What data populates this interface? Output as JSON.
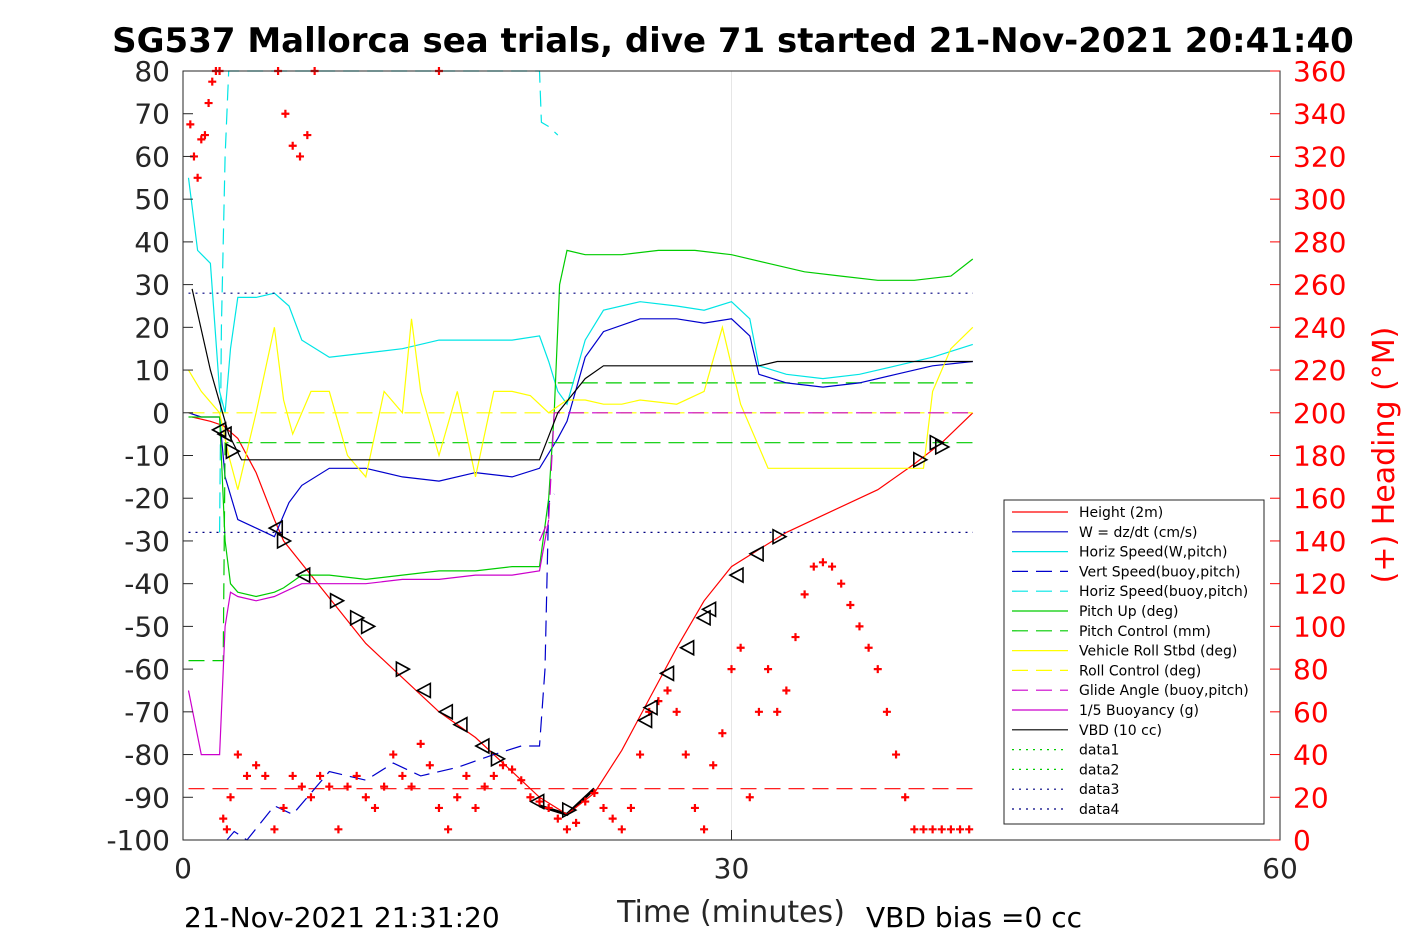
{
  "chart_data": {
    "type": "line",
    "title": "SG537 Mallorca sea trials, dive 71 started 21-Nov-2021 20:41:40",
    "xlabel": "Time (minutes)",
    "ylabel": "",
    "y2label": "(+) Heading (°M)",
    "xlim": [
      0,
      60
    ],
    "ylim": [
      -100,
      80
    ],
    "y2lim": [
      0,
      360
    ],
    "xticks": [
      "0",
      "30",
      "60"
    ],
    "yticks": [
      "80",
      "70",
      "60",
      "50",
      "40",
      "30",
      "20",
      "10",
      "0",
      "-10",
      "-20",
      "-30",
      "-40",
      "-50",
      "-60",
      "-70",
      "-80",
      "-90",
      "-100"
    ],
    "y2ticks": [
      "360",
      "340",
      "320",
      "300",
      "280",
      "260",
      "240",
      "220",
      "200",
      "180",
      "160",
      "140",
      "120",
      "100",
      "80",
      "60",
      "40",
      "20",
      "0"
    ],
    "grid": "x-major",
    "legend_position": "lower-right",
    "footer_left": "21-Nov-2021 21:31:20",
    "footer_right": "VBD bias =0 cc",
    "series": [
      {
        "name": "Height (2m)",
        "color": "#ff0000",
        "style": "solid",
        "x": [
          0.5,
          1.5,
          2.2,
          3.0,
          4.0,
          5.0,
          5.5,
          7.0,
          8.5,
          10.0,
          12.0,
          14.0,
          16.0,
          18.0,
          19.5,
          21.0,
          22.5,
          24.0,
          25.5,
          27.0,
          28.5,
          30.0,
          31.5,
          33.0,
          35.0,
          38.0,
          40.0,
          41.5,
          43.2
        ],
        "y": [
          -1,
          -2,
          -3,
          -6,
          -14,
          -25,
          -30,
          -38,
          -46,
          -54,
          -62,
          -70,
          -76,
          -84,
          -90,
          -94,
          -89,
          -79,
          -67,
          -55,
          -44,
          -36,
          -32,
          -28,
          -24,
          -18,
          -12,
          -7,
          0
        ]
      },
      {
        "name": "W = dz/dt (cm/s)",
        "color": "#0000cc",
        "style": "solid",
        "x": [
          0.3,
          1.0,
          2.0,
          2.3,
          3.0,
          4.0,
          5.0,
          5.8,
          6.5,
          8.0,
          10.0,
          12.0,
          14.0,
          16.0,
          18.0,
          19.5,
          20.5,
          21.0,
          22.0,
          23.0,
          25.0,
          27.0,
          28.5,
          30.0,
          31.0,
          31.5,
          33.0,
          35.0,
          37.0,
          39.0,
          41.0,
          43.2
        ],
        "y": [
          0,
          -1,
          -1,
          -15,
          -25,
          -27,
          -29,
          -21,
          -17,
          -13,
          -13,
          -15,
          -16,
          -14,
          -15,
          -13,
          -6,
          -2,
          13,
          19,
          22,
          22,
          21,
          22,
          18,
          9,
          7,
          6,
          7,
          9,
          11,
          12
        ]
      },
      {
        "name": "Horiz Speed(W,pitch)",
        "color": "#00e5e5",
        "style": "solid",
        "x": [
          0.3,
          0.8,
          1.5,
          2.0,
          2.3,
          2.6,
          3.0,
          4.0,
          5.0,
          5.8,
          6.5,
          8.0,
          10.0,
          12.0,
          14.0,
          16.0,
          18.0,
          19.5,
          20.0,
          20.5,
          21.0,
          22.0,
          23.0,
          25.0,
          27.0,
          28.5,
          30.0,
          31.0,
          31.5,
          33.0,
          35.0,
          37.0,
          39.0,
          41.0,
          43.2
        ],
        "y": [
          55,
          38,
          35,
          5,
          0,
          15,
          27,
          27,
          28,
          25,
          17,
          13,
          14,
          15,
          17,
          17,
          17,
          18,
          12,
          5,
          2,
          17,
          24,
          26,
          25,
          24,
          26,
          22,
          11,
          9,
          8,
          9,
          11,
          13,
          16
        ]
      },
      {
        "name": "Vert Speed(buoy,pitch)",
        "color": "#0000cc",
        "style": "dashed",
        "x": [
          2.4,
          2.8,
          3.5,
          5.0,
          6.0,
          8.0,
          10.0,
          11.5,
          13.0,
          15.0,
          17.0,
          18.5,
          19.5,
          19.8,
          20.0,
          20.3
        ],
        "y": [
          -100,
          -98,
          -100,
          -92,
          -94,
          -84,
          -86,
          -82,
          -85,
          -83,
          -80,
          -78,
          -78,
          -60,
          -21,
          -19
        ]
      },
      {
        "name": "Horiz Speed(buoy,pitch)",
        "color": "#00e5e5",
        "style": "dashed",
        "x": [
          2.0,
          2.1,
          2.3,
          2.5,
          2.8,
          3.5,
          5.0,
          7.0,
          9.0,
          11.0,
          13.0,
          15.0,
          17.0,
          18.5,
          19.5,
          19.6,
          20.0,
          20.5
        ],
        "y": [
          -28,
          20,
          60,
          80,
          80,
          80,
          80,
          80,
          80,
          80,
          80,
          80,
          80,
          80,
          80,
          68,
          67,
          65
        ]
      },
      {
        "name": "Pitch Up (deg)",
        "color": "#00cc00",
        "style": "solid",
        "x": [
          0.3,
          1.0,
          2.0,
          2.3,
          2.6,
          3.0,
          4.0,
          5.0,
          5.5,
          6.5,
          8.0,
          10.0,
          12.0,
          14.0,
          16.0,
          18.0,
          19.5,
          20.0,
          20.3,
          20.6,
          21.0,
          22.0,
          24.0,
          26.0,
          28.0,
          30.0,
          32.0,
          34.0,
          36.0,
          38.0,
          40.0,
          42.0,
          43.2
        ],
        "y": [
          -1,
          -1,
          -1,
          -30,
          -40,
          -42,
          -43,
          -42,
          -41,
          -38,
          -38,
          -39,
          -38,
          -37,
          -37,
          -36,
          -36,
          -20,
          0,
          30,
          38,
          37,
          37,
          38,
          38,
          37,
          35,
          33,
          32,
          31,
          31,
          32,
          36
        ]
      },
      {
        "name": "Pitch Control (mm)",
        "color": "#00cc00",
        "style": "dashed",
        "x": [
          0.3,
          2.2,
          2.3,
          2.5,
          43.2
        ],
        "y": [
          -58,
          -58,
          -7,
          -7,
          -7
        ]
      },
      {
        "name": "Vehicle Roll Stbd (deg)",
        "color": "#ffff00",
        "style": "solid",
        "x": [
          0.3,
          1.0,
          2.0,
          2.5,
          3.0,
          4.0,
          5.0,
          5.5,
          6.0,
          7.0,
          8.0,
          9.0,
          10.0,
          11.0,
          12.0,
          12.5,
          13.0,
          14.0,
          15.0,
          16.0,
          17.0,
          18.0,
          19.0,
          20.0,
          21.0,
          22.0,
          23.0,
          24.0,
          25.0,
          27.0,
          28.5,
          29.5,
          30.5,
          32.0,
          33.0,
          35.0,
          37.0,
          39.0,
          40.5,
          41.0,
          42.0,
          43.2
        ],
        "y": [
          10,
          5,
          0,
          -10,
          -18,
          0,
          20,
          3,
          -5,
          5,
          5,
          -10,
          -15,
          5,
          0,
          22,
          5,
          -10,
          5,
          -15,
          5,
          5,
          4,
          0,
          3,
          3,
          2,
          2,
          3,
          2,
          5,
          20,
          2,
          -13,
          -13,
          -13,
          -13,
          -13,
          -13,
          5,
          15,
          20
        ]
      },
      {
        "name": "Roll Control (deg)",
        "color": "#ffff00",
        "style": "dashed",
        "x": [
          0.3,
          43.2
        ],
        "y": [
          0,
          0
        ]
      },
      {
        "name": "Glide Angle (buoy,pitch)",
        "color": "#cc00cc",
        "style": "dashed",
        "x": [
          19.5,
          20.0,
          20.3,
          43.2
        ],
        "y": [
          -30,
          -25,
          0,
          0
        ]
      },
      {
        "name": "1/5 Buoyancy (g)",
        "color": "#cc00cc",
        "style": "solid",
        "x": [
          0.3,
          1.0,
          2.0,
          2.3,
          2.6,
          3.0,
          4.0,
          5.0,
          5.5,
          6.5,
          8.0,
          10.0,
          12.0,
          14.0,
          16.0,
          18.0,
          19.5,
          20.0
        ],
        "y": [
          -65,
          -80,
          -80,
          -50,
          -42,
          -43,
          -44,
          -43,
          -42,
          -40,
          -40,
          -40,
          -39,
          -39,
          -38,
          -38,
          -37,
          -25
        ]
      },
      {
        "name": "VBD (10 cc)",
        "color": "#000000",
        "style": "solid",
        "x": [
          0.5,
          1.5,
          2.5,
          3.2,
          5.0,
          10.0,
          15.0,
          19.5,
          20.5,
          22.0,
          23.0,
          31.5,
          32.5,
          43.2
        ],
        "y": [
          29,
          10,
          -5,
          -11,
          -11,
          -11,
          -11,
          -11,
          0,
          8,
          11,
          11,
          12,
          12
        ]
      },
      {
        "name": "data1",
        "color": "#00cc00",
        "style": "dotted",
        "x": [],
        "y": []
      },
      {
        "name": "data2",
        "color": "#00cc00",
        "style": "dotted",
        "x": [],
        "y": []
      },
      {
        "name": "data3",
        "color": "#000080",
        "style": "dotted",
        "x": [
          0.3,
          43.2
        ],
        "y": [
          28,
          28
        ]
      },
      {
        "name": "data4",
        "color": "#000080",
        "style": "dotted",
        "x": [
          0.3,
          43.2
        ],
        "y": [
          -28,
          -28
        ]
      }
    ],
    "extra_lines": [
      {
        "color": "#00cc00",
        "style": "dashed",
        "x": [
          20.5,
          43.2
        ],
        "y": [
          7,
          7
        ]
      },
      {
        "color": "#ff0000",
        "style": "dashed",
        "axis": "right",
        "x": [
          0.3,
          43.2
        ],
        "y": [
          24,
          24
        ]
      },
      {
        "color": "#000000",
        "style": "thick",
        "x": [
          19.5,
          21.0,
          22.5
        ],
        "y": [
          -92,
          -94,
          -88
        ]
      }
    ],
    "heading": {
      "name": "(+) Heading (°M)",
      "color": "#ff0000",
      "axis": "right",
      "x": [
        0.4,
        0.6,
        0.8,
        1.0,
        1.2,
        1.4,
        1.6,
        1.8,
        2.0,
        2.2,
        2.4,
        2.6,
        3.0,
        3.5,
        4.0,
        4.5,
        5.0,
        5.5,
        6.0,
        6.5,
        7.0,
        7.5,
        8.0,
        8.5,
        9.0,
        9.5,
        10.0,
        10.5,
        11.0,
        11.5,
        12.0,
        12.5,
        13.0,
        13.5,
        14.0,
        14.5,
        15.0,
        15.5,
        16.0,
        16.5,
        17.0,
        17.5,
        18.0,
        18.5,
        19.0,
        19.5,
        20.0,
        20.5,
        21.0,
        21.5,
        22.0,
        22.5,
        23.0,
        23.5,
        24.0,
        24.5,
        25.0,
        25.5,
        26.0,
        26.5,
        27.0,
        27.5,
        28.0,
        28.5,
        29.0,
        29.5,
        30.0,
        30.5,
        31.0,
        31.5,
        32.0,
        32.5,
        33.0,
        33.5,
        34.0,
        34.5,
        35.0,
        35.5,
        36.0,
        36.5,
        37.0,
        37.5,
        38.0,
        38.5,
        39.0,
        39.5,
        40.0,
        40.5,
        41.0,
        41.5,
        42.0,
        42.5,
        43.0,
        5.2,
        5.6,
        6.0,
        6.4,
        6.8,
        7.2,
        14.0
      ],
      "y": [
        335,
        320,
        310,
        328,
        330,
        345,
        355,
        360,
        360,
        10,
        5,
        20,
        40,
        30,
        35,
        30,
        5,
        15,
        30,
        25,
        20,
        30,
        25,
        5,
        25,
        30,
        20,
        15,
        25,
        40,
        30,
        25,
        45,
        35,
        15,
        5,
        20,
        30,
        15,
        25,
        30,
        35,
        33,
        28,
        20,
        18,
        15,
        10,
        5,
        8,
        18,
        22,
        15,
        10,
        5,
        15,
        40,
        60,
        65,
        70,
        60,
        40,
        15,
        5,
        35,
        50,
        80,
        90,
        20,
        60,
        80,
        60,
        70,
        95,
        115,
        128,
        130,
        128,
        120,
        110,
        100,
        90,
        80,
        60,
        40,
        20,
        5,
        5,
        5,
        5,
        5,
        5,
        5,
        360,
        340,
        325,
        320,
        330,
        360,
        360
      ]
    },
    "markers": {
      "x": [
        2.0,
        2.3,
        2.7,
        5.1,
        5.5,
        6.6,
        8.4,
        9.5,
        10.1,
        12.0,
        13.2,
        14.4,
        15.2,
        16.4,
        17.2,
        19.4,
        21.1,
        25.3,
        25.6,
        26.5,
        27.6,
        28.5,
        28.8,
        30.3,
        31.4,
        32.6,
        40.3,
        41.2,
        41.5
      ],
      "y": [
        -4,
        -5,
        -9,
        -27,
        -30,
        -38,
        -44,
        -48,
        -50,
        -60,
        -65,
        -70,
        -73,
        -78,
        -81,
        -91,
        -93,
        -72,
        -69,
        -61,
        -55,
        -48,
        -46,
        -38,
        -33,
        -29,
        -11,
        -7,
        -8
      ],
      "dir": [
        "L",
        "L",
        "R",
        "L",
        "R",
        "L",
        "R",
        "R",
        "R",
        "R",
        "L",
        "L",
        "L",
        "L",
        "R",
        "L",
        "R",
        "L",
        "L",
        "L",
        "L",
        "L",
        "L",
        "L",
        "L",
        "R",
        "R",
        "R",
        "R"
      ]
    }
  }
}
